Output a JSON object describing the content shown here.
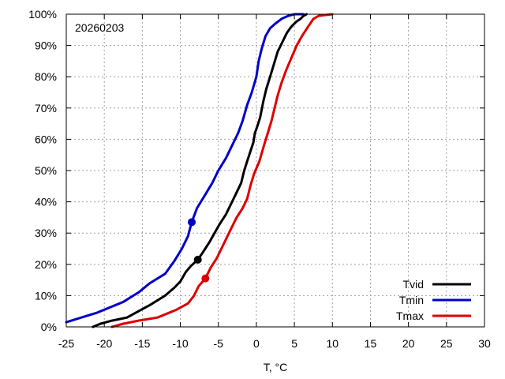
{
  "chart_data": {
    "type": "line",
    "annotation": "20260203",
    "xlabel": "T, °C",
    "ylabel": "",
    "xlim": [
      -25,
      30
    ],
    "ylim": [
      0,
      100
    ],
    "x_ticks": [
      -25,
      -20,
      -15,
      -10,
      -5,
      0,
      5,
      10,
      15,
      20,
      25,
      30
    ],
    "y_ticks": [
      0,
      10,
      20,
      30,
      40,
      50,
      60,
      70,
      80,
      90,
      100
    ],
    "y_tick_suffix": "%",
    "grid": true,
    "legend_position": "bottom-right",
    "series": [
      {
        "name": "Tvid",
        "color": "#000000",
        "marker": {
          "x": -7.7,
          "y": 21.5
        },
        "x": [
          -21.5,
          -20.5,
          -19,
          -17,
          -15.5,
          -14,
          -12,
          -10.8,
          -10,
          -9.3,
          -8.6,
          -7.7,
          -7,
          -6.2,
          -5.5,
          -4.8,
          -4,
          -3.2,
          -2.6,
          -2,
          -1.6,
          -1.2,
          -0.8,
          -0.4,
          -0.2,
          0.1,
          0.5,
          0.9,
          1.3,
          1.8,
          2.3,
          2.8,
          3.4,
          4,
          4.6,
          5.2,
          5.8,
          6.2,
          6.6
        ],
        "y": [
          0,
          1,
          2,
          3,
          5,
          7,
          10,
          12.5,
          14.5,
          17.5,
          19.5,
          21.5,
          24,
          27,
          30,
          33,
          36,
          40,
          43,
          46,
          50,
          53,
          56,
          59,
          62,
          64,
          67,
          72,
          76,
          80,
          84,
          88,
          91,
          94,
          96,
          97.5,
          98.5,
          99.5,
          100
        ]
      },
      {
        "name": "Tmin",
        "color": "#0000cc",
        "marker": {
          "x": -8.5,
          "y": 33.5
        },
        "x": [
          -25,
          -23,
          -21,
          -19.5,
          -17.5,
          -15.5,
          -14,
          -12,
          -10.8,
          -9.8,
          -9,
          -8.5,
          -7.8,
          -6.8,
          -5.8,
          -5,
          -4,
          -3.2,
          -2.4,
          -1.8,
          -1.2,
          -0.6,
          0,
          0.3,
          0.7,
          1.2,
          1.8,
          2.5,
          3.3,
          4.2,
          5,
          5.7,
          6.2
        ],
        "y": [
          1.5,
          3,
          4.5,
          6,
          8,
          11,
          14,
          17,
          21,
          25,
          29,
          33.5,
          38,
          42,
          46,
          50,
          54,
          58,
          62,
          66,
          71,
          75,
          80,
          85,
          89,
          93,
          95.5,
          97,
          98.5,
          99.5,
          100,
          100,
          100
        ]
      },
      {
        "name": "Tmax",
        "color": "#dd0000",
        "marker": {
          "x": -6.7,
          "y": 15.5
        },
        "x": [
          -19,
          -17.5,
          -15.5,
          -13,
          -11.5,
          -10.5,
          -9,
          -8.2,
          -7.6,
          -6.7,
          -6,
          -5.2,
          -4.2,
          -3.4,
          -2.6,
          -1.8,
          -1.2,
          -0.8,
          -0.3,
          0.4,
          1,
          1.5,
          2,
          2.4,
          2.8,
          3.3,
          3.9,
          4.6,
          5.3,
          6,
          6.8,
          7.5,
          8.2,
          10
        ],
        "y": [
          0,
          1,
          2,
          3,
          4.5,
          5.5,
          7.5,
          10,
          13,
          15.5,
          19,
          22,
          27,
          31,
          35,
          38,
          41,
          45,
          49,
          53,
          58,
          62,
          66,
          70,
          74,
          78,
          82,
          86,
          90,
          93,
          96,
          98.5,
          99.5,
          100
        ]
      }
    ]
  }
}
